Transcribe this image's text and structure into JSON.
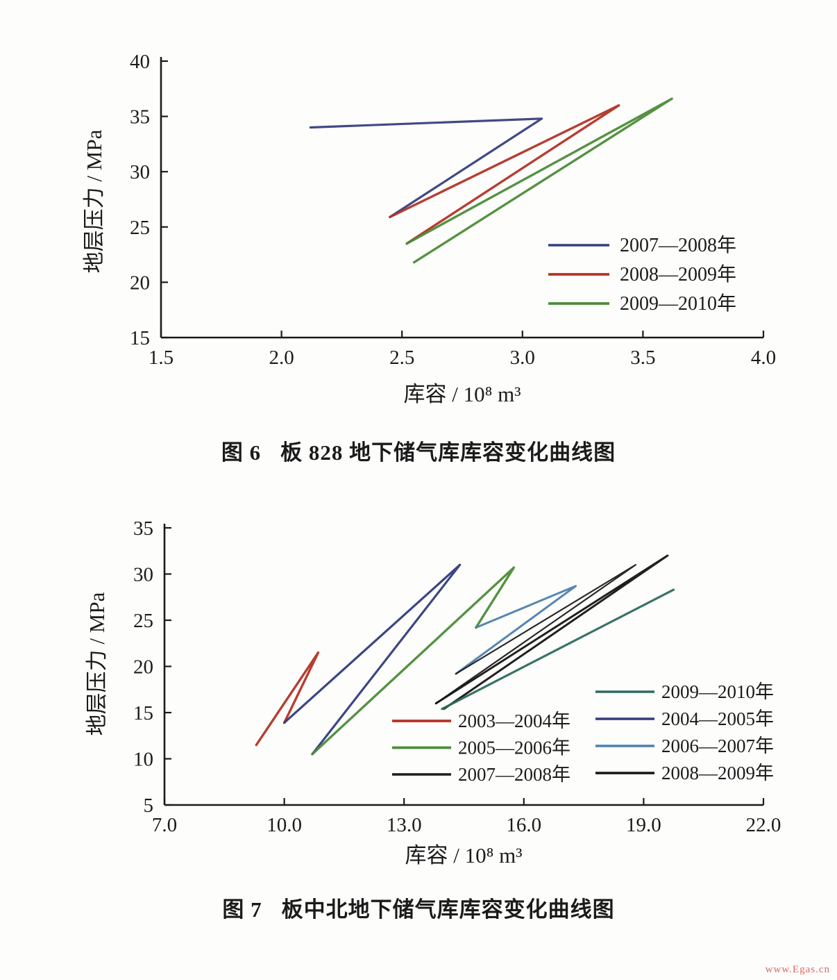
{
  "page": {
    "watermark": "www.Egas.cn"
  },
  "figures": [
    {
      "caption_label": "图 6",
      "caption_text": "板 828 地下储气库库容变化曲线图"
    },
    {
      "caption_label": "图 7",
      "caption_text": "板中北地下储气库库容变化曲线图"
    }
  ],
  "chart_data": [
    {
      "type": "line",
      "title": "板828地下储气库库容变化曲线图",
      "xlabel": "库容 / 10⁸ m³",
      "ylabel": "地层压力 / MPa",
      "xlim": [
        1.5,
        4.0
      ],
      "ylim": [
        15,
        40
      ],
      "xticks": [
        "1.5",
        "2.0",
        "2.5",
        "3.0",
        "3.5",
        "4.0"
      ],
      "yticks": [
        "15",
        "20",
        "25",
        "30",
        "35",
        "40"
      ],
      "grid": false,
      "legend_position": "inside middle-right, one column",
      "series": [
        {
          "name": "2007—2008年",
          "color": "#373f7e",
          "width": 3.2,
          "points": [
            [
              2.12,
              34.0
            ],
            [
              3.08,
              34.8
            ],
            [
              2.45,
              25.9
            ]
          ]
        },
        {
          "name": "2008—2009年",
          "color": "#b23427",
          "width": 3.4,
          "points": [
            [
              2.45,
              25.9
            ],
            [
              3.4,
              36.0
            ],
            [
              2.52,
              23.5
            ]
          ]
        },
        {
          "name": "2009—2010年",
          "color": "#4b8c38",
          "width": 3.4,
          "points": [
            [
              2.52,
              23.5
            ],
            [
              3.62,
              36.6
            ],
            [
              2.55,
              21.8
            ]
          ]
        }
      ]
    },
    {
      "type": "line",
      "title": "板中北地下储气库库容变化曲线图",
      "xlabel": "库容 / 10⁸ m³",
      "ylabel": "地层压力 / MPa",
      "xlim": [
        7.0,
        22.0
      ],
      "ylim": [
        5,
        35
      ],
      "xticks": [
        "7.0",
        "10.0",
        "13.0",
        "16.0",
        "19.0",
        "22.0"
      ],
      "yticks": [
        "5",
        "10",
        "15",
        "20",
        "25",
        "30",
        "35"
      ],
      "grid": false,
      "legend_position": "inside bottom-right, two columns",
      "series": [
        {
          "name": "2003—2004年",
          "color": "#b23427",
          "width": 3.4,
          "points": [
            [
              9.3,
              11.5
            ],
            [
              10.85,
              21.5
            ],
            [
              10.0,
              13.9
            ]
          ]
        },
        {
          "name": "2004—2005年",
          "color": "#323c7d",
          "width": 3.2,
          "points": [
            [
              10.0,
              13.9
            ],
            [
              14.4,
              31.0
            ],
            [
              10.7,
              10.5
            ]
          ]
        },
        {
          "name": "2005—2006年",
          "color": "#4b8c38",
          "width": 3.4,
          "points": [
            [
              10.7,
              10.5
            ],
            [
              15.75,
              30.7
            ],
            [
              14.8,
              24.2
            ]
          ]
        },
        {
          "name": "2006—2007年",
          "color": "#4d7fae",
          "width": 3.0,
          "points": [
            [
              14.8,
              24.2
            ],
            [
              17.3,
              28.7
            ],
            [
              14.3,
              19.2
            ]
          ]
        },
        {
          "name": "2007—2008年",
          "color": "#1c1c1c",
          "width": 2.2,
          "points": [
            [
              14.3,
              19.2
            ],
            [
              18.8,
              31.0
            ],
            [
              13.8,
              16.0
            ]
          ]
        },
        {
          "name": "2008—2009年",
          "color": "#141414",
          "width": 3.0,
          "points": [
            [
              13.8,
              16.0
            ],
            [
              19.6,
              32.0
            ],
            [
              14.0,
              15.4
            ]
          ]
        },
        {
          "name": "2009—2010年",
          "color": "#2e6b5e",
          "width": 3.2,
          "points": [
            [
              13.95,
              15.4
            ],
            [
              19.75,
              28.3
            ]
          ]
        }
      ]
    }
  ]
}
